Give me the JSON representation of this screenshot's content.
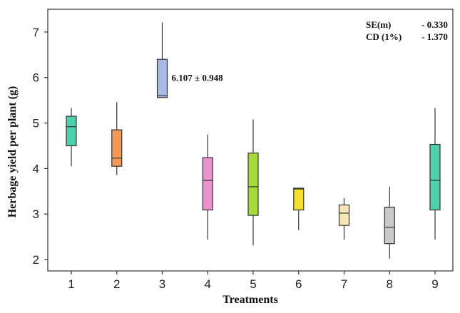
{
  "chart_data": {
    "type": "box",
    "xlabel": "Treatments",
    "ylabel": "Herbage yield per plant (g)",
    "categories": [
      "1",
      "2",
      "3",
      "4",
      "5",
      "6",
      "7",
      "8",
      "9"
    ],
    "ylim": [
      1.75,
      7.5
    ],
    "yticks": [
      2,
      3,
      4,
      5,
      6,
      7
    ],
    "grid": false,
    "boxes": [
      {
        "category": "1",
        "min": 4.05,
        "q1": 4.5,
        "median": 4.92,
        "q3": 5.15,
        "max": 5.33,
        "color": "#4fcfaa"
      },
      {
        "category": "2",
        "min": 3.86,
        "q1": 4.05,
        "median": 4.23,
        "q3": 4.85,
        "max": 5.46,
        "color": "#f29a55"
      },
      {
        "category": "3",
        "min": 5.56,
        "q1": 5.56,
        "median": 5.6,
        "q3": 6.4,
        "max": 7.21,
        "color": "#a9b8e6"
      },
      {
        "category": "4",
        "min": 2.44,
        "q1": 3.09,
        "median": 3.74,
        "q3": 4.24,
        "max": 4.75,
        "color": "#ee8fcf"
      },
      {
        "category": "5",
        "min": 2.31,
        "q1": 2.97,
        "median": 3.6,
        "q3": 4.34,
        "max": 5.08,
        "color": "#a6da3a"
      },
      {
        "category": "6",
        "min": 2.65,
        "q1": 3.09,
        "median": 3.55,
        "q3": 3.57,
        "max": 3.57,
        "color": "#f4df2c"
      },
      {
        "category": "7",
        "min": 2.44,
        "q1": 2.75,
        "median": 3.02,
        "q3": 3.2,
        "max": 3.35,
        "color": "#f6e6b6"
      },
      {
        "category": "8",
        "min": 2.02,
        "q1": 2.35,
        "median": 2.71,
        "q3": 3.15,
        "max": 3.6,
        "color": "#c9c9c9"
      },
      {
        "category": "9",
        "min": 2.44,
        "q1": 3.09,
        "median": 3.74,
        "q3": 4.53,
        "max": 5.33,
        "color": "#4fcfaa"
      }
    ],
    "annotations": [
      {
        "text": "6.107 ± 0.948",
        "category": "3",
        "y": 6.0
      }
    ],
    "stats": [
      {
        "label": "SE(m)",
        "value": "- 0.330"
      },
      {
        "label": "CD (1%)",
        "value": "- 1.370"
      }
    ]
  }
}
